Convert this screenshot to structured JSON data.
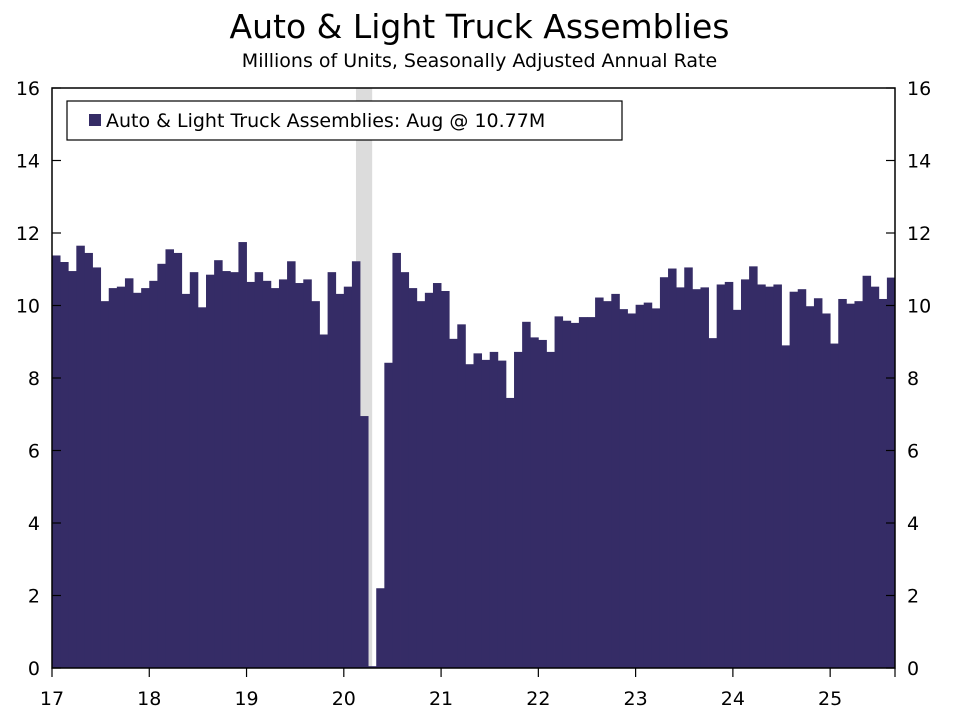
{
  "chart_data": {
    "type": "bar",
    "title": "Auto & Light Truck Assemblies",
    "subtitle": "Millions of Units, Seasonally Adjusted Annual Rate",
    "xlabel": "",
    "ylabel": "",
    "ylim": [
      0,
      16
    ],
    "yticks": [
      "0",
      "2",
      "4",
      "6",
      "8",
      "10",
      "12",
      "14",
      "16"
    ],
    "xticks": [
      "17",
      "18",
      "19",
      "20",
      "21",
      "22",
      "23",
      "24",
      "25"
    ],
    "grid": false,
    "legend_position": "top-left",
    "colors": {
      "bar": "#352c66",
      "recession": "#dcdcdc"
    },
    "recession_shading": {
      "start": "2020-02",
      "end": "2020-04"
    },
    "series": [
      {
        "name": "Auto & Light Truck Assemblies: Aug @ 10.77M",
        "start": "2017-01",
        "frequency": "monthly",
        "values": [
          11.38,
          11.2,
          10.95,
          11.65,
          11.45,
          11.05,
          10.12,
          10.48,
          10.52,
          10.75,
          10.35,
          10.48,
          10.68,
          11.15,
          11.55,
          11.45,
          10.32,
          10.92,
          9.95,
          10.85,
          11.25,
          10.95,
          10.92,
          11.75,
          10.65,
          10.92,
          10.68,
          10.48,
          10.72,
          11.22,
          10.62,
          10.72,
          10.12,
          9.2,
          10.92,
          10.32,
          10.52,
          11.22,
          6.95,
          0.05,
          2.2,
          8.42,
          11.45,
          10.92,
          10.48,
          10.12,
          10.35,
          10.62,
          10.4,
          9.08,
          9.48,
          8.38,
          8.68,
          8.5,
          8.72,
          8.48,
          7.45,
          8.72,
          9.55,
          9.12,
          9.05,
          8.72,
          9.7,
          9.58,
          9.52,
          9.68,
          9.68,
          10.22,
          10.12,
          10.32,
          9.9,
          9.78,
          10.02,
          10.08,
          9.92,
          10.78,
          11.02,
          10.5,
          11.05,
          10.45,
          10.5,
          9.1,
          10.58,
          10.65,
          9.88,
          10.72,
          11.08,
          10.58,
          10.52,
          10.58,
          8.9,
          10.38,
          10.45,
          9.98,
          10.2,
          9.78,
          8.95,
          10.18,
          10.05,
          10.12,
          10.82,
          10.52,
          10.18,
          10.77
        ]
      }
    ]
  }
}
